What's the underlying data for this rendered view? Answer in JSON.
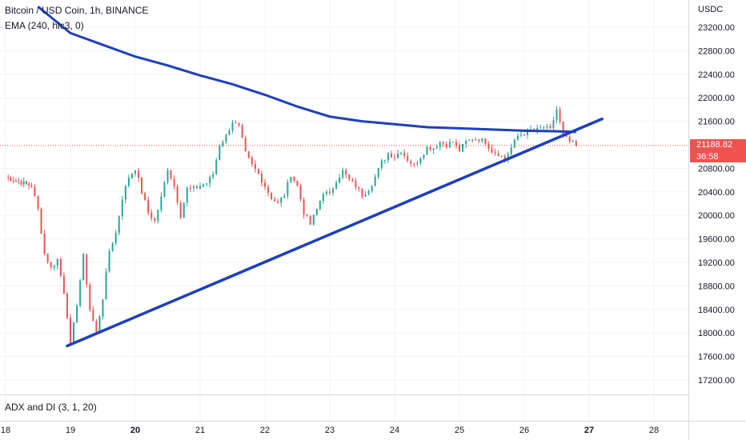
{
  "legend": {
    "symbol": "Bitcoin / USD Coin, 1h, BINANCE",
    "indicator": "EMA (240, hlc3, 0)",
    "pane_indicator": "ADX and DI (3, 1, 20)"
  },
  "price_axis": {
    "currency": "USDC",
    "labels": [
      "23200.00",
      "22800.00",
      "22400.00",
      "22000.00",
      "21600.00",
      "20800.00",
      "20400.00",
      "20000.00",
      "19600.00",
      "19200.00",
      "18800.00",
      "18400.00",
      "18000.00",
      "17600.00",
      "17200.00"
    ]
  },
  "current_price": {
    "value": "21188.82",
    "countdown": "36:58"
  },
  "time_axis": {
    "labels": [
      "18",
      "19",
      "20",
      "21",
      "22",
      "23",
      "24",
      "25",
      "26",
      "27",
      "28"
    ],
    "bold": [
      "20",
      "27"
    ]
  },
  "colors": {
    "up": "#26a69a",
    "down": "#ef5350",
    "ema": "#1e3fbf",
    "trendline": "#1e3fbf"
  },
  "chart_data": {
    "type": "candlestick",
    "title": "Bitcoin / USD Coin, 1h, BINANCE",
    "x_unit": "day",
    "ylim": [
      17000,
      23500
    ],
    "grid": true,
    "series": [
      {
        "name": "Bitcoin / USD Coin",
        "kind": "candles_hourly_close",
        "points": [
          [
            18.0,
            20650
          ],
          [
            18.2,
            20580
          ],
          [
            18.4,
            20500
          ],
          [
            18.5,
            20100
          ],
          [
            18.6,
            19350
          ],
          [
            18.7,
            19100
          ],
          [
            18.8,
            19250
          ],
          [
            18.9,
            18700
          ],
          [
            18.95,
            18300
          ],
          [
            19.0,
            17780
          ],
          [
            19.1,
            18500
          ],
          [
            19.2,
            19300
          ],
          [
            19.3,
            18400
          ],
          [
            19.4,
            18000
          ],
          [
            19.5,
            18600
          ],
          [
            19.6,
            19400
          ],
          [
            19.7,
            19700
          ],
          [
            19.8,
            20300
          ],
          [
            19.9,
            20650
          ],
          [
            20.0,
            20800
          ],
          [
            20.1,
            20400
          ],
          [
            20.2,
            20050
          ],
          [
            20.3,
            19900
          ],
          [
            20.4,
            20300
          ],
          [
            20.5,
            20800
          ],
          [
            20.6,
            20500
          ],
          [
            20.7,
            20000
          ],
          [
            20.8,
            20450
          ],
          [
            20.9,
            20450
          ],
          [
            21.0,
            20500
          ],
          [
            21.1,
            20550
          ],
          [
            21.2,
            20700
          ],
          [
            21.3,
            21200
          ],
          [
            21.4,
            21350
          ],
          [
            21.5,
            21600
          ],
          [
            21.6,
            21500
          ],
          [
            21.7,
            21050
          ],
          [
            21.8,
            20850
          ],
          [
            21.9,
            20700
          ],
          [
            22.0,
            20500
          ],
          [
            22.1,
            20300
          ],
          [
            22.2,
            20200
          ],
          [
            22.3,
            20350
          ],
          [
            22.4,
            20700
          ],
          [
            22.5,
            20500
          ],
          [
            22.6,
            20050
          ],
          [
            22.7,
            19850
          ],
          [
            22.8,
            20100
          ],
          [
            22.9,
            20400
          ],
          [
            23.0,
            20350
          ],
          [
            23.1,
            20600
          ],
          [
            23.2,
            20750
          ],
          [
            23.3,
            20600
          ],
          [
            23.4,
            20500
          ],
          [
            23.5,
            20350
          ],
          [
            23.6,
            20450
          ],
          [
            23.7,
            20650
          ],
          [
            23.8,
            20900
          ],
          [
            23.9,
            21050
          ],
          [
            24.0,
            21000
          ],
          [
            24.1,
            21100
          ],
          [
            24.2,
            20950
          ],
          [
            24.3,
            20850
          ],
          [
            24.4,
            21000
          ],
          [
            24.5,
            21150
          ],
          [
            24.6,
            21150
          ],
          [
            24.7,
            21250
          ],
          [
            24.8,
            21200
          ],
          [
            24.9,
            21250
          ],
          [
            25.0,
            21100
          ],
          [
            25.1,
            21250
          ],
          [
            25.2,
            21300
          ],
          [
            25.3,
            21300
          ],
          [
            25.4,
            21250
          ],
          [
            25.5,
            21100
          ],
          [
            25.6,
            21050
          ],
          [
            25.7,
            20950
          ],
          [
            25.8,
            21150
          ],
          [
            25.9,
            21350
          ],
          [
            26.0,
            21400
          ],
          [
            26.1,
            21450
          ],
          [
            26.2,
            21450
          ],
          [
            26.3,
            21500
          ],
          [
            26.4,
            21450
          ],
          [
            26.5,
            21800
          ],
          [
            26.6,
            21350
          ],
          [
            26.7,
            21250
          ],
          [
            26.8,
            21188.82
          ]
        ]
      },
      {
        "name": "EMA (240, hlc3, 0)",
        "kind": "line",
        "points": [
          [
            18.5,
            23550
          ],
          [
            19.0,
            23100
          ],
          [
            19.5,
            22900
          ],
          [
            20.0,
            22700
          ],
          [
            20.5,
            22550
          ],
          [
            21.0,
            22380
          ],
          [
            21.5,
            22230
          ],
          [
            22.0,
            22050
          ],
          [
            22.5,
            21850
          ],
          [
            23.0,
            21680
          ],
          [
            23.5,
            21600
          ],
          [
            24.0,
            21550
          ],
          [
            24.5,
            21500
          ],
          [
            25.0,
            21480
          ],
          [
            25.5,
            21460
          ],
          [
            26.0,
            21440
          ],
          [
            26.5,
            21430
          ],
          [
            26.8,
            21420
          ]
        ]
      },
      {
        "name": "trendline",
        "kind": "line",
        "points": [
          [
            18.95,
            17780
          ],
          [
            27.2,
            21640
          ]
        ]
      }
    ]
  }
}
